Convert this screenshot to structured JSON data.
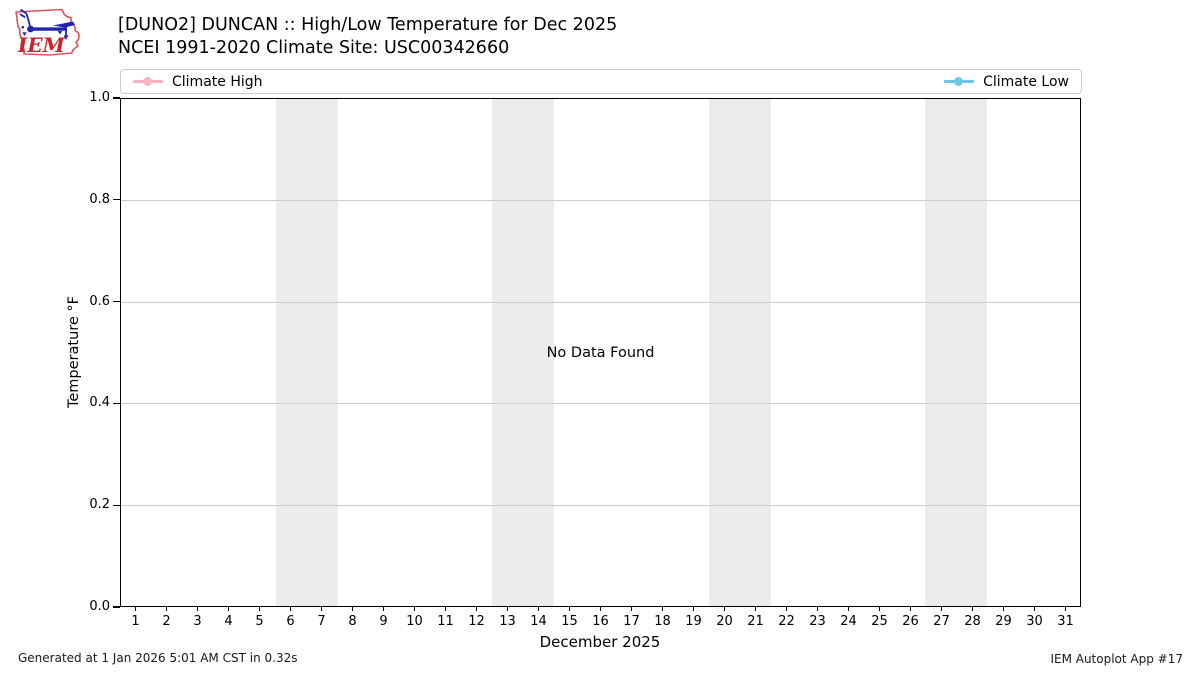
{
  "header": {
    "title_line1": "[DUNO2] DUNCAN :: High/Low Temperature for Dec 2025",
    "title_line2": "NCEI 1991-2020 Climate Site: USC00342660"
  },
  "logo": {
    "text": "IEM",
    "outline_color": "#d9545e",
    "text_color": "#c1272d",
    "instrument_color": "#2323ae"
  },
  "legend": {
    "items": [
      {
        "label": "Climate High",
        "color": "#f8b4c0"
      },
      {
        "label": "Climate Low",
        "color": "#70c6e5"
      }
    ]
  },
  "chart_data": {
    "type": "line",
    "title": "[DUNO2] DUNCAN :: High/Low Temperature for Dec 2025",
    "subtitle": "NCEI 1991-2020 Climate Site: USC00342660",
    "xlabel": "December 2025",
    "ylabel": "Temperature °F",
    "xlim": [
      0.5,
      31.5
    ],
    "ylim": [
      0.0,
      1.0
    ],
    "x_ticks": [
      1,
      2,
      3,
      4,
      5,
      6,
      7,
      8,
      9,
      10,
      11,
      12,
      13,
      14,
      15,
      16,
      17,
      18,
      19,
      20,
      21,
      22,
      23,
      24,
      25,
      26,
      27,
      28,
      29,
      30,
      31
    ],
    "y_ticks": [
      "0.0",
      "0.2",
      "0.4",
      "0.6",
      "0.8",
      "1.0"
    ],
    "grid": "horizontal gridlines at y ticks",
    "grid_color": "#cccccc",
    "legend_position": "top strip spanning plot width; Climate High left, Climate Low right",
    "series": [
      {
        "name": "Climate High",
        "color": "#f8b4c0",
        "x": [],
        "values": []
      },
      {
        "name": "Climate Low",
        "color": "#70c6e5",
        "x": [],
        "values": []
      }
    ],
    "annotation": "No Data Found",
    "weekend_bands": [
      [
        5.5,
        7.5
      ],
      [
        12.5,
        14.5
      ],
      [
        19.5,
        21.5
      ],
      [
        26.5,
        28.5
      ]
    ],
    "band_color": "#ececec"
  },
  "footer": {
    "generated": "Generated at 1 Jan 2026 5:01 AM CST in 0.32s",
    "app": "IEM Autoplot App #17"
  }
}
